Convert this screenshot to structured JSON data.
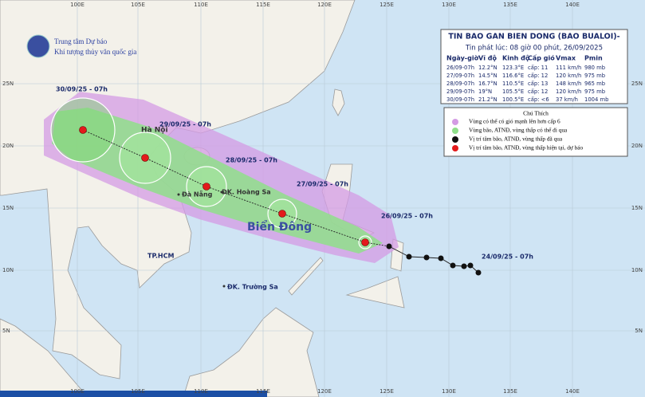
{
  "header": {
    "lines": [
      "Trung tâm Dự báo",
      "Khí tượng thủy văn quốc gia"
    ]
  },
  "bulletin": {
    "title": "TIN BAO GAN BIEN DONG (BAO BUALOI)-",
    "issued": "Tin phát lúc: 08 giờ 00 phút, 26/09/2025",
    "columns": [
      "Ngày-giờ",
      "Vĩ độ",
      "Kinh độ",
      "Cấp gió",
      "Vmax",
      "Pmin"
    ],
    "rows": [
      [
        "26/09-07h",
        "12.2°N",
        "123.3°E",
        "cấp: 11",
        "111 km/h",
        "980 mb"
      ],
      [
        "27/09-07h",
        "14.5°N",
        "116.6°E",
        "cấp: 12",
        "120 km/h",
        "975 mb"
      ],
      [
        "28/09-07h",
        "16.7°N",
        "110.5°E",
        "cấp: 13",
        "148 km/h",
        "965 mb"
      ],
      [
        "29/09-07h",
        "19°N",
        "105.5°E",
        "cấp: 12",
        "120 km/h",
        "975 mb"
      ],
      [
        "30/09-07h",
        "21.2°N",
        "100.5°E",
        "cấp: <6",
        "37 km/h",
        "1004 mb"
      ]
    ]
  },
  "legend": {
    "title": "Chú Thích",
    "items": [
      "Vùng có thể có gió mạnh lên hơn cấp 6",
      "Vùng bão, ATNĐ, vùng thấp có thể đi qua",
      "Vị trí tâm bão, ATNĐ, vùng thấp đã qua",
      "Vị trí tâm bão, ATNĐ, vùng thấp hiện tại, dự báo"
    ]
  },
  "map": {
    "lon_labels": [
      "100E",
      "105E",
      "110E",
      "115E",
      "120E",
      "125E",
      "130E",
      "135E",
      "140E"
    ],
    "lat_labels": [
      "25N",
      "20N",
      "15N",
      "10N",
      "5N"
    ],
    "track_labels": [
      "30/09/25 - 07h",
      "29/09/25 - 07h",
      "28/09/25 - 07h",
      "27/09/25 - 07h",
      "26/09/25 - 07h",
      "24/09/25 - 07h"
    ],
    "places": [
      "Hà Nội",
      "Đà Nẵng",
      "ĐK. Hoàng Sa",
      "Biển Đông",
      "TP.HCM",
      "ĐK. Trường Sa"
    ]
  }
}
